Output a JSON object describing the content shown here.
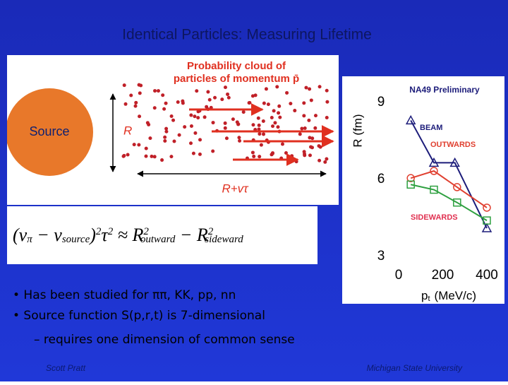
{
  "title": "Identical Particles: Measuring Lifetime",
  "diagram": {
    "cloud_lines": [
      "Probability cloud of",
      "particles of momentum p̄"
    ],
    "source": "Source",
    "radius": "R",
    "length": "R+vτ"
  },
  "formula": [
    "(ν",
    "π",
    " − ν",
    "source",
    ")",
    "2",
    "τ",
    "2",
    " ≈ R",
    "2",
    "outward",
    " − R",
    "2",
    "sideward"
  ],
  "chart_data": {
    "type": "line",
    "annotation": "NA49 Preliminary",
    "ylabel": "R (fm)",
    "xlabel": "p",
    "xlabel_subscript": "t",
    "xlabel_unit": "(MeV/c)",
    "xlim": [
      0,
      400
    ],
    "xticks": [
      0,
      200,
      400
    ],
    "ylim": [
      3,
      9
    ],
    "yticks": [
      3,
      6,
      9
    ],
    "series": [
      {
        "name": "BEAM",
        "color": "#1c1c7a",
        "label_color": "#1c1c7a",
        "marker": "triangle",
        "x": [
          55,
          160,
          255,
          400
        ],
        "values": [
          8.3,
          6.65,
          6.65,
          4.1
        ]
      },
      {
        "name": "OUTWARDS",
        "color": "#e04030",
        "label_color": "#e04030",
        "marker": "circle",
        "x": [
          55,
          160,
          265,
          400
        ],
        "values": [
          6.05,
          6.33,
          5.7,
          4.9
        ]
      },
      {
        "name": "SIDEWARDS",
        "color": "#2ea040",
        "label_color": "#e03050",
        "marker": "square",
        "x": [
          55,
          160,
          265,
          400
        ],
        "values": [
          5.8,
          5.6,
          5.1,
          4.4
        ]
      }
    ]
  },
  "bullets": [
    "• Has been studied for ππ, KK, pp, nn",
    "• Source function S(p,r,t) is 7-dimensional",
    "– requires one dimension of common sense"
  ],
  "footer": {
    "left": "Scott Pratt",
    "right": "Michigan State University"
  }
}
